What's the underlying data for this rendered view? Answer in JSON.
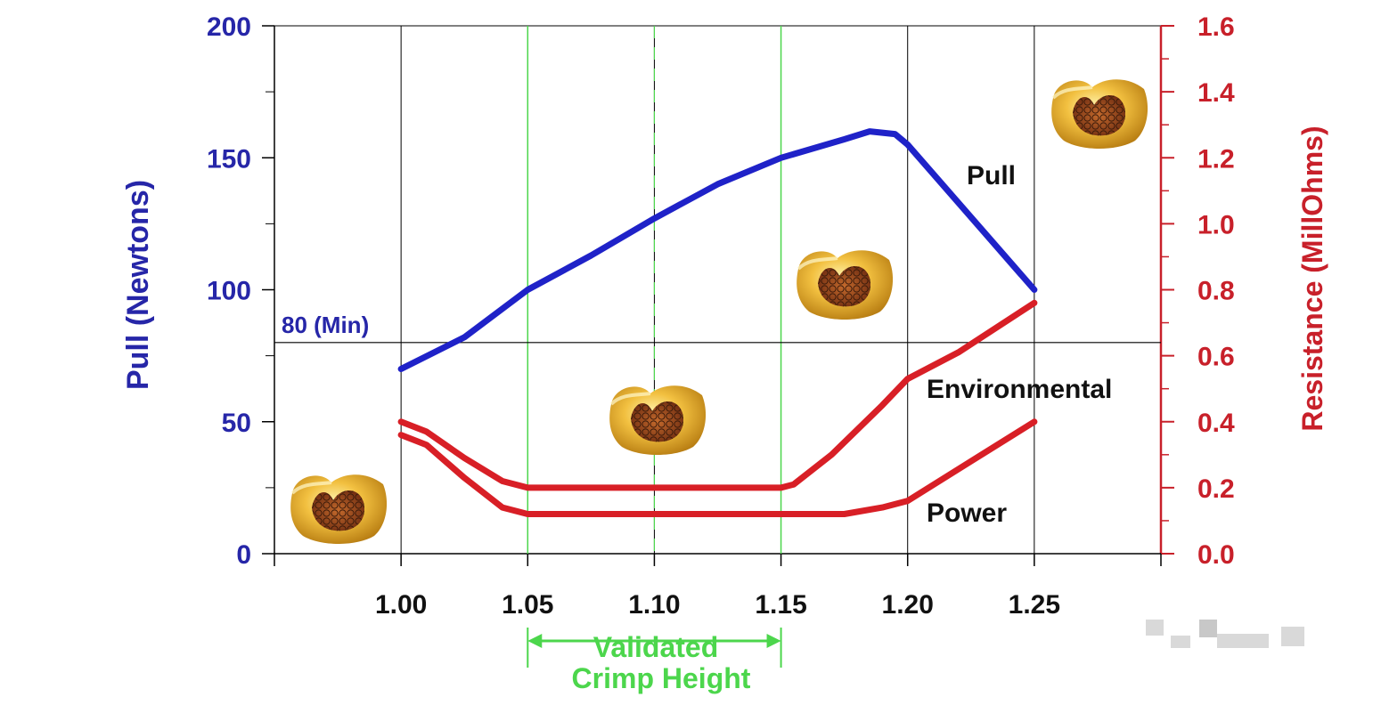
{
  "chart_data": {
    "type": "line",
    "title": "",
    "x": [
      1.0,
      1.05,
      1.1,
      1.15,
      1.2,
      1.25
    ],
    "x_tick_labels": [
      "1.00",
      "1.05",
      "1.10",
      "1.15",
      "1.20",
      "1.25"
    ],
    "xlim": [
      0.95,
      1.3
    ],
    "y_left": {
      "label": "Pull (Newtons)",
      "ticks": [
        "0",
        "50",
        "100",
        "150",
        "200"
      ],
      "ylim": [
        0,
        200
      ]
    },
    "y_right": {
      "label": "Resistance (MillOhms)",
      "ticks": [
        "0.0",
        "0.2",
        "0.4",
        "0.6",
        "0.8",
        "1.0",
        "1.2",
        "1.4",
        "1.6"
      ],
      "ylim": [
        0,
        1.6
      ]
    },
    "series": [
      {
        "name": "Pull",
        "axis": "left",
        "color": "#1f22c8",
        "points": [
          [
            1.0,
            70
          ],
          [
            1.025,
            82
          ],
          [
            1.05,
            100
          ],
          [
            1.075,
            113
          ],
          [
            1.1,
            127
          ],
          [
            1.125,
            140
          ],
          [
            1.15,
            150
          ],
          [
            1.175,
            157
          ],
          [
            1.185,
            160
          ],
          [
            1.195,
            159
          ],
          [
            1.2,
            155
          ],
          [
            1.25,
            100
          ]
        ]
      },
      {
        "name": "Environmental",
        "axis": "right",
        "color": "#d81f26",
        "points": [
          [
            1.0,
            0.4
          ],
          [
            1.01,
            0.37
          ],
          [
            1.025,
            0.29
          ],
          [
            1.04,
            0.22
          ],
          [
            1.05,
            0.2
          ],
          [
            1.1,
            0.2
          ],
          [
            1.15,
            0.2
          ],
          [
            1.155,
            0.21
          ],
          [
            1.17,
            0.3
          ],
          [
            1.19,
            0.45
          ],
          [
            1.2,
            0.53
          ],
          [
            1.22,
            0.61
          ],
          [
            1.25,
            0.76
          ]
        ]
      },
      {
        "name": "Power",
        "axis": "right",
        "color": "#d81f26",
        "points": [
          [
            1.0,
            0.36
          ],
          [
            1.01,
            0.33
          ],
          [
            1.025,
            0.23
          ],
          [
            1.04,
            0.14
          ],
          [
            1.05,
            0.12
          ],
          [
            1.1,
            0.12
          ],
          [
            1.15,
            0.12
          ],
          [
            1.175,
            0.12
          ],
          [
            1.19,
            0.14
          ],
          [
            1.2,
            0.16
          ],
          [
            1.225,
            0.28
          ],
          [
            1.25,
            0.4
          ]
        ]
      }
    ],
    "reference_line": {
      "axis": "left",
      "value": 80,
      "label": "80 (Min)"
    },
    "validated_range": {
      "from": 1.05,
      "to": 1.15,
      "label_line1": "Validated",
      "label_line2": "Crimp Height"
    },
    "series_labels": {
      "pull": "Pull",
      "environmental": "Environmental",
      "power": "Power"
    },
    "colors": {
      "left_axis": "#2626a8",
      "right_axis": "#c8202a",
      "validated": "#4cd64c",
      "gridline": "#000000"
    },
    "grid": "vertical lines at x ticks",
    "annotations": "crimp cross-section images at several points"
  }
}
